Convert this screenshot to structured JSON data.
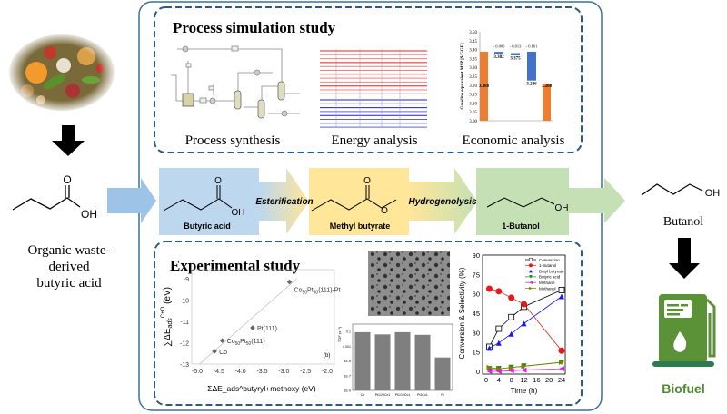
{
  "left": {
    "caption_lines": [
      "Organic waste-",
      "derived",
      "butyric acid"
    ],
    "oh_label": "OH",
    "o_label": "O"
  },
  "right": {
    "product": "Butanol",
    "oh_label": "OH",
    "biofuel_label": "Biofuel",
    "icon": "fuel-pump-leaf-icon"
  },
  "process_box": {
    "title": "Process simulation study",
    "panels": [
      "Process  synthesis",
      "Energy analysis",
      "Economic analysis"
    ]
  },
  "flow": {
    "steps": [
      {
        "label": "Butyric acid",
        "color": "#bdd7ee"
      },
      {
        "label": "Methyl butyrate",
        "color": "#ffe699"
      },
      {
        "label": "1-Butanol",
        "color": "#c5e0b4"
      }
    ],
    "reactions": [
      "Esterification",
      "Hydrogenolysis"
    ],
    "o_label": "O",
    "oh_label": "OH"
  },
  "experimental_box": {
    "title": "Experimental study"
  },
  "colors": {
    "frame": "#3f6e9a",
    "arrow_blue": "#9dc3e6",
    "arrow_green": "#c5e0b4",
    "biofuel_green": "#4f8a2e",
    "orange_bar": "#ed7d31",
    "blue_bar": "#4472c4"
  },
  "chart_data": [
    {
      "type": "bar",
      "subtype": "waterfall",
      "ylabel": "Gasoline equivalent MSP [$/GGE]",
      "ylim": [
        3.0,
        3.5
      ],
      "yticks": [
        "3.00",
        "3.05",
        "3.10",
        "3.15",
        "3.20",
        "3.25",
        "3.30",
        "3.35",
        "3.40",
        "3.45",
        "3.50"
      ],
      "bars": [
        {
          "kind": "total",
          "start": 3.0,
          "end": 3.388,
          "label": "3.388",
          "color": "#ed7d31"
        },
        {
          "kind": "delta",
          "start": 3.388,
          "end": 3.382,
          "label": "3.382",
          "delta_label": "- 0.006",
          "color": "#4472c4"
        },
        {
          "kind": "delta",
          "start": 3.388,
          "end": 3.375,
          "label": "3.375",
          "delta_label": "- 0.013",
          "color": "#4472c4"
        },
        {
          "kind": "delta",
          "start": 3.388,
          "end": 3.226,
          "label": "3.226",
          "delta_label": "- 0.161",
          "color": "#4472c4"
        },
        {
          "kind": "total",
          "start": 3.0,
          "end": 3.208,
          "label": "3.208",
          "color": "#ed7d31"
        }
      ]
    },
    {
      "type": "scatter",
      "xlabel": "ΣΔE_ads^butyryl+methoxy (eV)",
      "xlabel_parts": {
        "sum": "∑ΔE",
        "sub": "ads",
        "sup": "butyryl+methoxy",
        "unit": " (eV)"
      },
      "ylabel_parts": {
        "sum": "∑ΔE",
        "sub": "ads",
        "sup": "C+O",
        "unit": " (eV)"
      },
      "xlim": [
        -5.0,
        -2.0
      ],
      "ylim": [
        -13,
        -9
      ],
      "xticks": [
        "-5.0",
        "-4.5",
        "-4.0",
        "-3.5",
        "-3.0",
        "-2.5",
        "-2.0"
      ],
      "yticks": [
        "-13",
        "-12",
        "-11",
        "-10",
        "-9"
      ],
      "panel_label": "(b)",
      "trend_line": [
        [
          -4.95,
          -13
        ],
        [
          -2.7,
          -9
        ]
      ],
      "points": [
        {
          "x": -4.6,
          "y": -12.4,
          "label": [
            [
              "Co",
              ""
            ]
          ]
        },
        {
          "x": -4.42,
          "y": -11.9,
          "label": [
            [
              "Co",
              ""
            ],
            [
              "50",
              "sub"
            ],
            [
              "Pt",
              ""
            ],
            [
              "50",
              "sub"
            ],
            [
              "(111)",
              ""
            ]
          ]
        },
        {
          "x": -3.72,
          "y": -11.3,
          "label": [
            [
              "Pt(111)",
              ""
            ]
          ]
        },
        {
          "x": -2.87,
          "y": -9.15,
          "label": [
            [
              "Co",
              ""
            ],
            [
              "50",
              "sub"
            ],
            [
              "Pt",
              ""
            ],
            [
              "50",
              "sub"
            ],
            [
              "(111)-Pt",
              ""
            ]
          ]
        }
      ]
    },
    {
      "type": "bar",
      "ylabel": "TOF (s⁻¹)",
      "yscale": "log",
      "ylim": [
        1e-09,
        1
      ],
      "yticks": [
        {
          "v": 0.1,
          "t": "0.1"
        },
        {
          "v": 0.001,
          "t": "0.001"
        },
        {
          "v": 1e-05,
          "t": "1E-5"
        },
        {
          "v": 1e-07,
          "t": "1E-7"
        },
        {
          "v": 1e-09,
          "t": "1E-9"
        }
      ],
      "categories": [
        "Co",
        "Pt1/20Co1",
        "Pt1/10Co1",
        "Pt1Co1",
        "Pt"
      ],
      "values": [
        0.08,
        0.04,
        0.08,
        0.035,
        3e-05
      ],
      "color": "#7f7f7f"
    },
    {
      "type": "line",
      "xlabel": "Time (h)",
      "ylabel": "Conversion & Selectivity (%)",
      "xlim": [
        0,
        24
      ],
      "ylim": [
        0,
        90
      ],
      "xticks": [
        "0",
        "4",
        "8",
        "12",
        "16",
        "20",
        "24"
      ],
      "yticks": [
        "0",
        "15",
        "30",
        "45",
        "60",
        "75",
        "90"
      ],
      "legend": "top-right",
      "x": [
        1,
        4,
        8,
        12,
        24
      ],
      "series": [
        {
          "name": "Conversion",
          "values": [
            19,
            33,
            42,
            50,
            63
          ],
          "color": "#000000",
          "marker": "square-open"
        },
        {
          "name": "1-Butanol",
          "values": [
            64,
            62,
            57,
            52,
            16
          ],
          "color": "#e8191b",
          "marker": "circle"
        },
        {
          "name": "Butyl butyrate",
          "values": [
            18,
            22,
            29,
            37,
            58
          ],
          "color": "#1a1ae6",
          "marker": "triangle-up"
        },
        {
          "name": "Butyric acid",
          "values": [
            2,
            2,
            3,
            4,
            7
          ],
          "color": "#0a8a0a",
          "marker": "triangle-down"
        },
        {
          "name": "Methane",
          "values": [
            0,
            0,
            0.5,
            1,
            2
          ],
          "color": "#e619e6",
          "marker": "triangle-left"
        },
        {
          "name": "Methanol",
          "values": [
            3,
            2,
            3,
            4,
            7
          ],
          "color": "#808000",
          "marker": "triangle-right"
        }
      ]
    }
  ]
}
